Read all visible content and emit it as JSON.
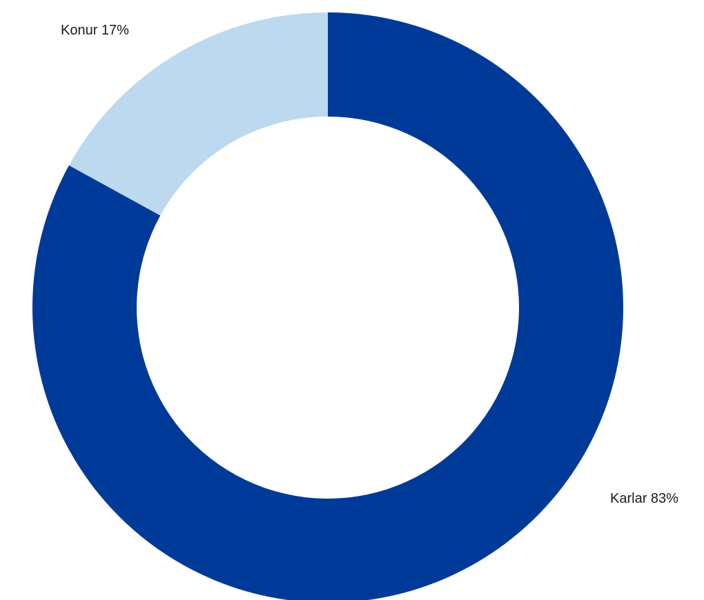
{
  "chart_data": {
    "type": "pie",
    "variant": "donut",
    "title": "",
    "categories": [
      "Karlar",
      "Konur"
    ],
    "values": [
      83,
      17
    ],
    "unit": "%",
    "labels": [
      "Karlar 83%",
      "Konur 17%"
    ],
    "colors": [
      "#003a99",
      "#bcd9f0"
    ],
    "start": "top",
    "direction": "clockwise",
    "legend": "none"
  }
}
